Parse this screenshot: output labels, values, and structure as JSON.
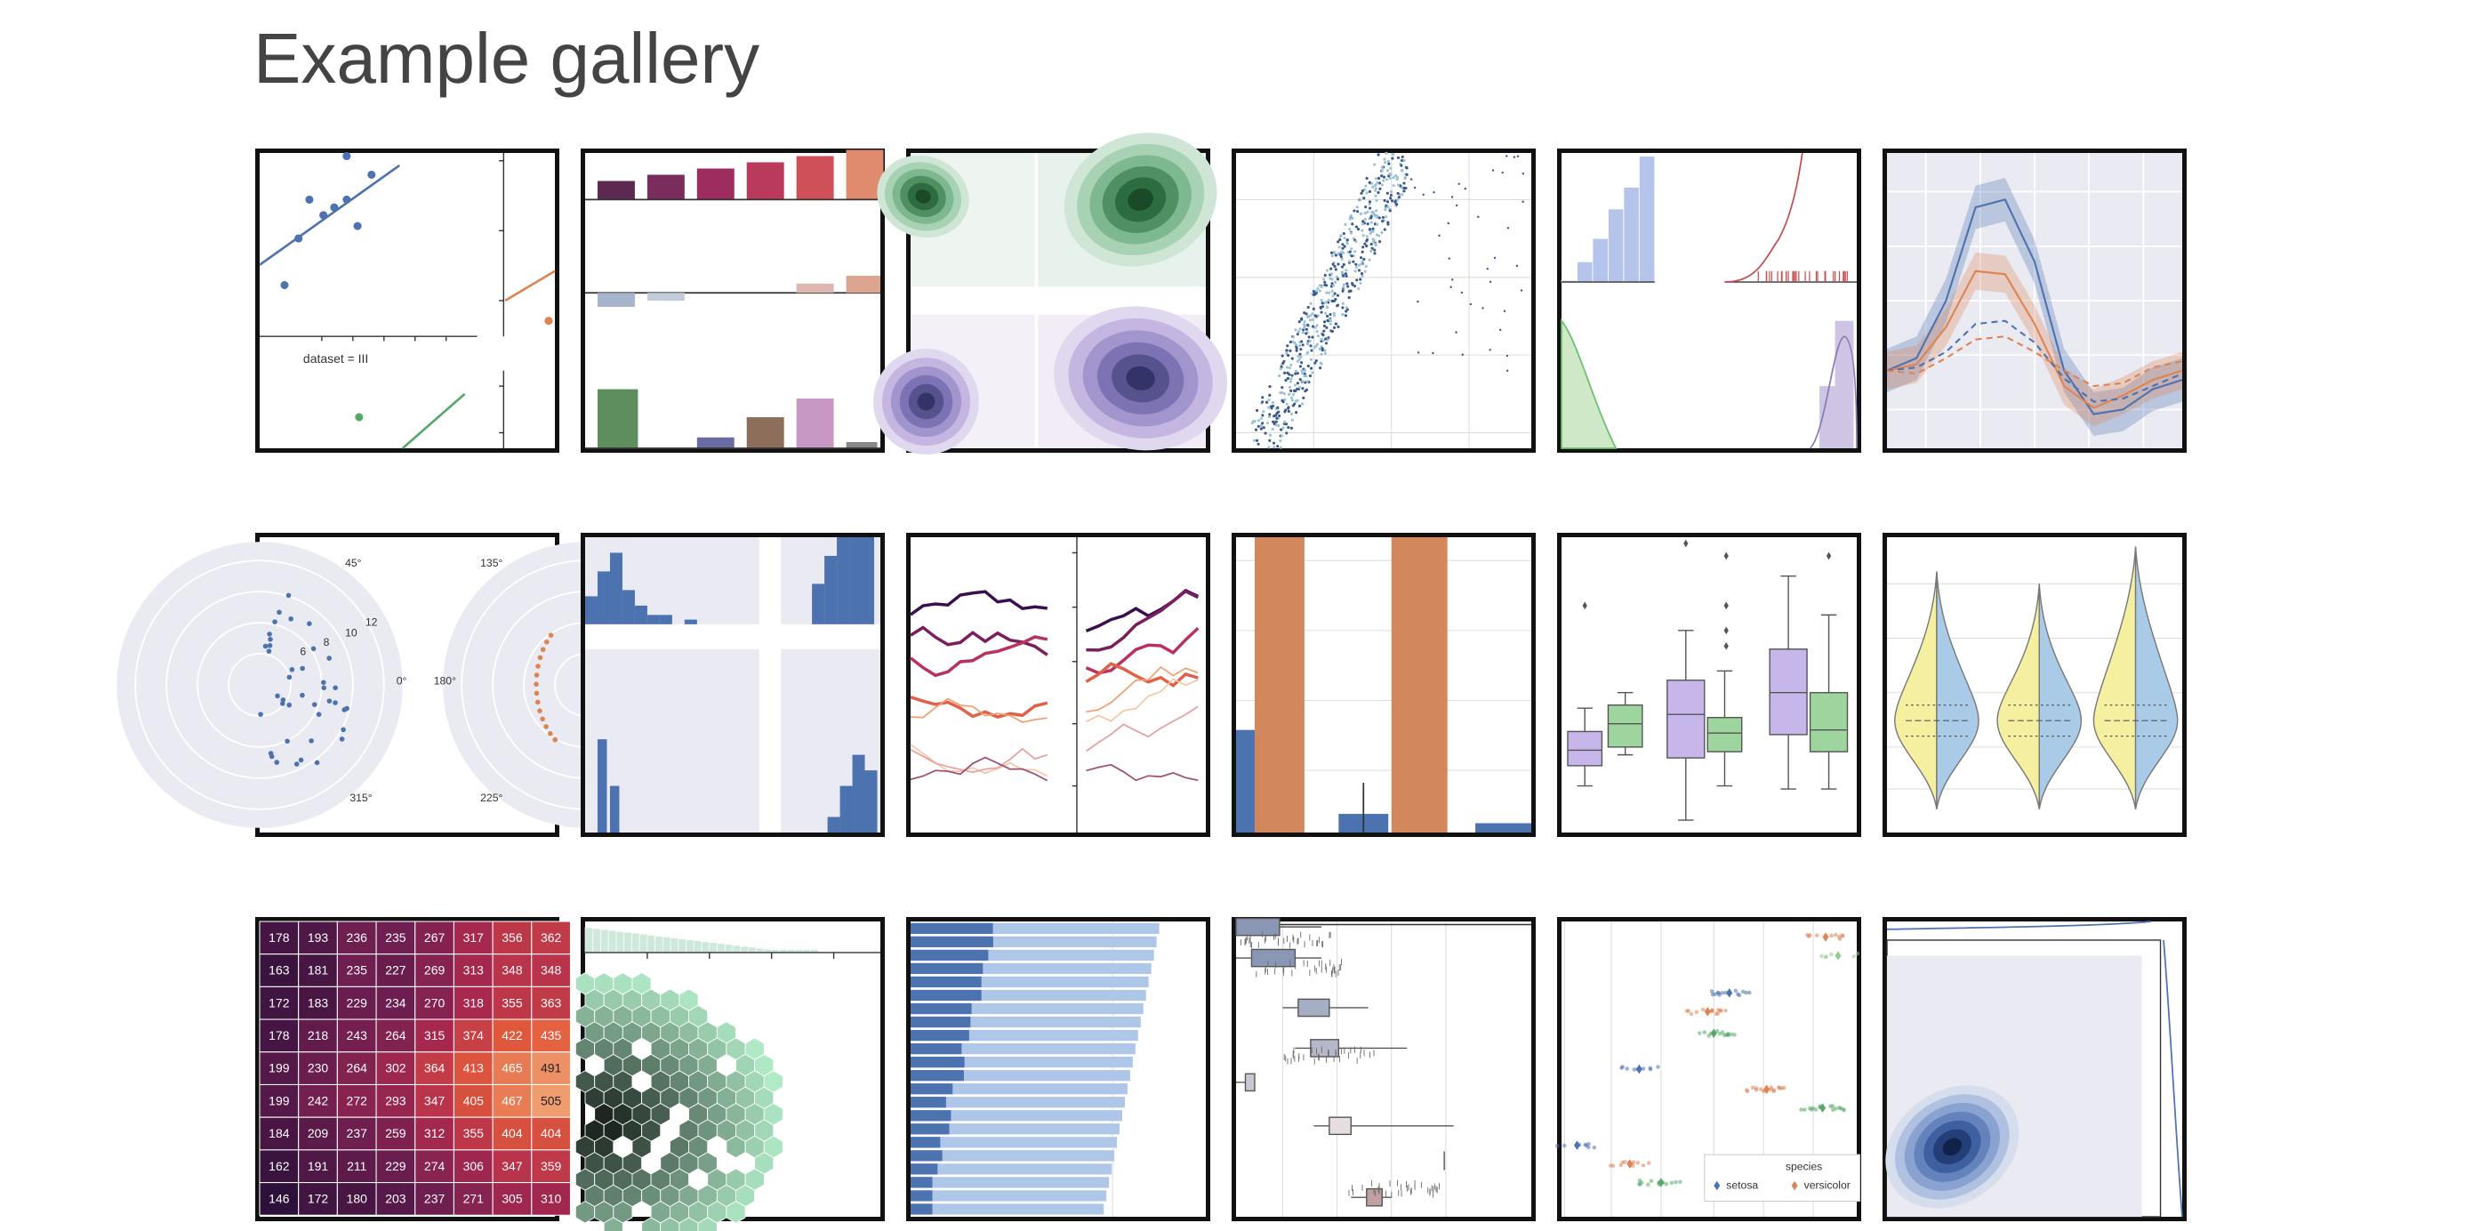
{
  "header": {
    "title": "Example gallery"
  },
  "anscombe": {
    "label": "dataset = III"
  },
  "polar": {
    "labels": [
      "45°",
      "135°",
      "12",
      "10",
      "8",
      "6",
      "0°",
      "180°",
      "315°",
      "225°"
    ]
  },
  "heatmap": {
    "rows": [
      [
        178,
        193,
        236,
        235,
        267,
        317,
        356,
        362
      ],
      [
        163,
        181,
        235,
        227,
        269,
        313,
        348,
        348
      ],
      [
        172,
        183,
        229,
        234,
        270,
        318,
        355,
        363
      ],
      [
        178,
        218,
        243,
        264,
        315,
        374,
        422,
        435
      ],
      [
        199,
        230,
        264,
        302,
        364,
        413,
        465,
        491
      ],
      [
        199,
        242,
        272,
        293,
        347,
        405,
        467,
        505
      ],
      [
        184,
        209,
        237,
        259,
        312,
        355,
        404,
        404
      ],
      [
        162,
        191,
        211,
        229,
        274,
        306,
        347,
        359
      ],
      [
        146,
        172,
        180,
        203,
        237,
        271,
        305,
        310
      ]
    ]
  },
  "strip_legend": {
    "title": "species",
    "entries": [
      "setosa",
      "versicolor"
    ]
  }
}
